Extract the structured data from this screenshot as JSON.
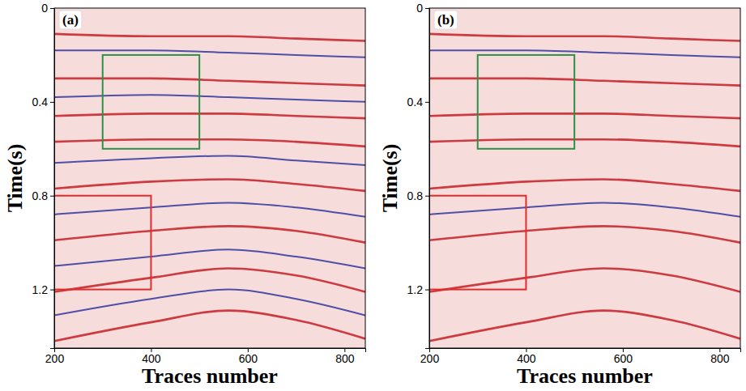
{
  "chart_data": [
    {
      "type": "line",
      "title": "(a)",
      "xlabel": "Traces number",
      "ylabel": "Time(s)",
      "xlim": [
        200,
        843
      ],
      "ylim": [
        1.45,
        0
      ],
      "xticks": [
        200,
        400,
        600,
        800
      ],
      "yticks": [
        0,
        0.4,
        0.8,
        1.2
      ],
      "x": [
        200,
        400,
        560,
        700,
        843
      ],
      "series": [
        {
          "color": "#c8282e",
          "values": [
            0.11,
            0.12,
            0.12,
            0.13,
            0.14
          ]
        },
        {
          "color": "#3b3f9e",
          "values": [
            0.18,
            0.18,
            0.19,
            0.2,
            0.21
          ]
        },
        {
          "color": "#c8282e",
          "values": [
            0.3,
            0.3,
            0.31,
            0.32,
            0.33
          ]
        },
        {
          "color": "#3b3f9e",
          "values": [
            0.38,
            0.37,
            0.38,
            0.39,
            0.4
          ]
        },
        {
          "color": "#c8282e",
          "values": [
            0.46,
            0.45,
            0.45,
            0.46,
            0.47
          ]
        },
        {
          "color": "#c8282e",
          "values": [
            0.57,
            0.56,
            0.56,
            0.57,
            0.59
          ]
        },
        {
          "color": "#3b3f9e",
          "values": [
            0.66,
            0.64,
            0.63,
            0.65,
            0.67
          ]
        },
        {
          "color": "#c8282e",
          "values": [
            0.77,
            0.74,
            0.73,
            0.75,
            0.78
          ]
        },
        {
          "color": "#3b3f9e",
          "values": [
            0.88,
            0.85,
            0.83,
            0.85,
            0.89
          ]
        },
        {
          "color": "#c8282e",
          "values": [
            0.99,
            0.95,
            0.93,
            0.95,
            1.0
          ]
        },
        {
          "color": "#3b3f9e",
          "values": [
            1.1,
            1.06,
            1.03,
            1.06,
            1.11
          ]
        },
        {
          "color": "#c8282e",
          "values": [
            1.21,
            1.15,
            1.11,
            1.14,
            1.21
          ]
        },
        {
          "color": "#3b3f9e",
          "values": [
            1.31,
            1.24,
            1.2,
            1.24,
            1.31
          ]
        },
        {
          "color": "#c8282e",
          "values": [
            1.42,
            1.34,
            1.29,
            1.33,
            1.41
          ]
        }
      ],
      "boxes": [
        {
          "color": "#2f8f46",
          "x": [
            300,
            500
          ],
          "y": [
            0.2,
            0.6
          ]
        },
        {
          "color": "#e32b2b",
          "x": [
            200,
            400
          ],
          "y": [
            0.8,
            1.2
          ]
        }
      ]
    },
    {
      "type": "line",
      "title": "(b)",
      "xlabel": "Traces number",
      "ylabel": "Time(s)",
      "xlim": [
        200,
        843
      ],
      "ylim": [
        1.45,
        0
      ],
      "xticks": [
        200,
        400,
        600,
        800
      ],
      "yticks": [
        0,
        0.4,
        0.8,
        1.2
      ],
      "x": [
        200,
        400,
        560,
        700,
        843
      ],
      "series": [
        {
          "color": "#c8282e",
          "values": [
            0.11,
            0.12,
            0.12,
            0.13,
            0.14
          ]
        },
        {
          "color": "#3b3f9e",
          "values": [
            0.18,
            0.18,
            0.19,
            0.2,
            0.21
          ]
        },
        {
          "color": "#c8282e",
          "values": [
            0.3,
            0.3,
            0.31,
            0.32,
            0.33
          ]
        },
        {
          "color": "#c8282e",
          "values": [
            0.46,
            0.45,
            0.45,
            0.46,
            0.47
          ]
        },
        {
          "color": "#c8282e",
          "values": [
            0.57,
            0.56,
            0.56,
            0.57,
            0.59
          ]
        },
        {
          "color": "#c8282e",
          "values": [
            0.77,
            0.74,
            0.73,
            0.75,
            0.78
          ]
        },
        {
          "color": "#3b3f9e",
          "values": [
            0.88,
            0.85,
            0.83,
            0.85,
            0.89
          ]
        },
        {
          "color": "#c8282e",
          "values": [
            0.99,
            0.95,
            0.93,
            0.95,
            1.0
          ]
        },
        {
          "color": "#c8282e",
          "values": [
            1.21,
            1.15,
            1.11,
            1.14,
            1.21
          ]
        },
        {
          "color": "#c8282e",
          "values": [
            1.42,
            1.34,
            1.29,
            1.33,
            1.41
          ]
        }
      ],
      "boxes": [
        {
          "color": "#2f8f46",
          "x": [
            300,
            500
          ],
          "y": [
            0.2,
            0.6
          ]
        },
        {
          "color": "#e32b2b",
          "x": [
            200,
            400
          ],
          "y": [
            0.8,
            1.2
          ]
        }
      ]
    }
  ]
}
